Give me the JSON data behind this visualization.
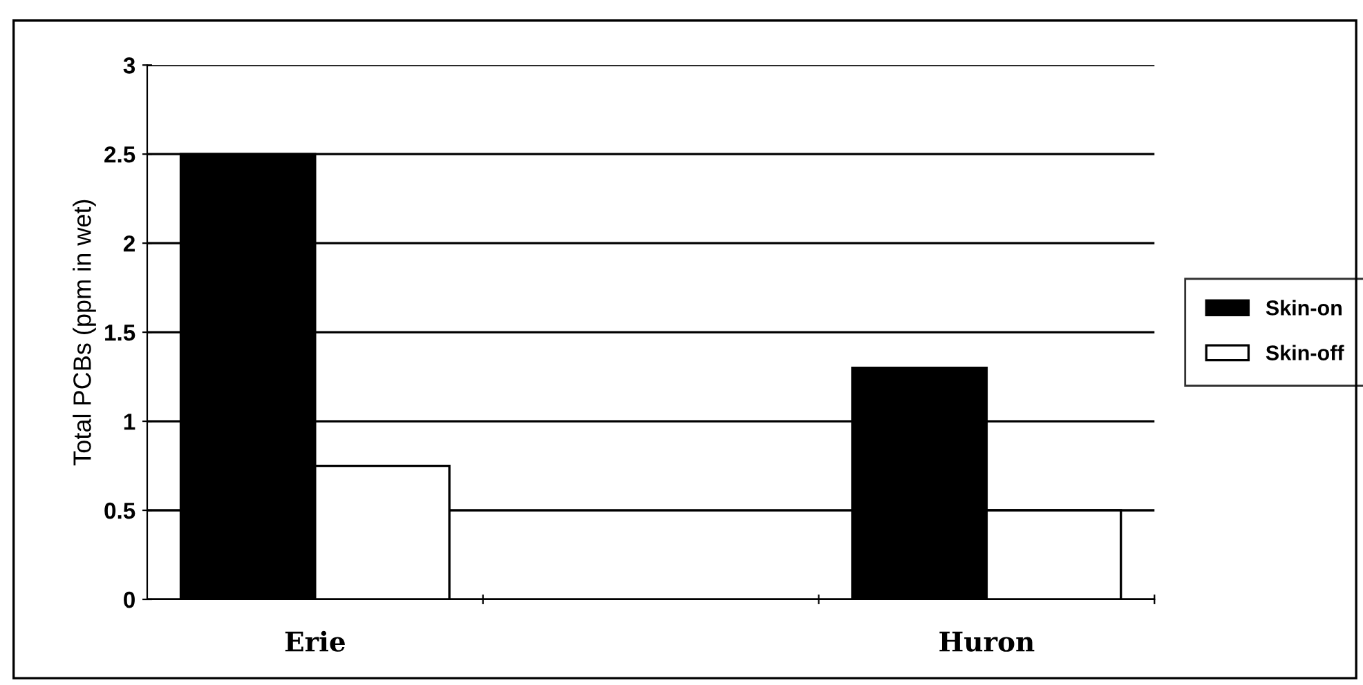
{
  "chart_data": {
    "type": "bar",
    "ylabel": "Total PCBs (ppm in wet)",
    "categories": [
      "Erie",
      null,
      "Huron"
    ],
    "series": [
      {
        "name": "Skin-on",
        "color": "#000000",
        "values": [
          2.5,
          null,
          1.3
        ]
      },
      {
        "name": "Skin-off",
        "color": "#ffffff",
        "values": [
          0.75,
          null,
          0.5
        ]
      }
    ],
    "ylim": [
      0,
      3
    ],
    "yticks": [
      0,
      0.5,
      1,
      1.5,
      2,
      2.5,
      3
    ],
    "grid": "y",
    "legend": "right"
  }
}
